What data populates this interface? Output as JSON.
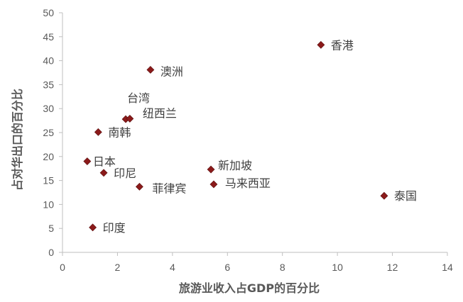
{
  "chart_data": {
    "type": "scatter",
    "title": "",
    "xlabel": "旅游业收入占GDP的百分比",
    "ylabel": "占对华出口的百分比",
    "xlim": [
      0,
      14
    ],
    "ylim": [
      0,
      50
    ],
    "xticks": [
      0,
      2,
      4,
      6,
      8,
      10,
      12,
      14
    ],
    "yticks": [
      0,
      5,
      10,
      15,
      20,
      25,
      30,
      35,
      40,
      45,
      50
    ],
    "grid": false,
    "marker": "diamond",
    "marker_color": "#8B1A1A",
    "points": [
      {
        "label": "香港",
        "x": 9.4,
        "y": 43.3
      },
      {
        "label": "澳洲",
        "x": 3.2,
        "y": 38.1
      },
      {
        "label": "台湾",
        "x": 2.3,
        "y": 27.8
      },
      {
        "label": "纽西兰",
        "x": 2.45,
        "y": 27.9
      },
      {
        "label": "南韩",
        "x": 1.3,
        "y": 25.1
      },
      {
        "label": "日本",
        "x": 0.9,
        "y": 19.0
      },
      {
        "label": "印尼",
        "x": 1.5,
        "y": 16.6
      },
      {
        "label": "菲律宾",
        "x": 2.8,
        "y": 13.7
      },
      {
        "label": "新加坡",
        "x": 5.4,
        "y": 17.3
      },
      {
        "label": "马来西亚",
        "x": 5.5,
        "y": 14.2
      },
      {
        "label": "泰国",
        "x": 11.7,
        "y": 11.8
      },
      {
        "label": "印度",
        "x": 1.1,
        "y": 5.2
      }
    ]
  }
}
